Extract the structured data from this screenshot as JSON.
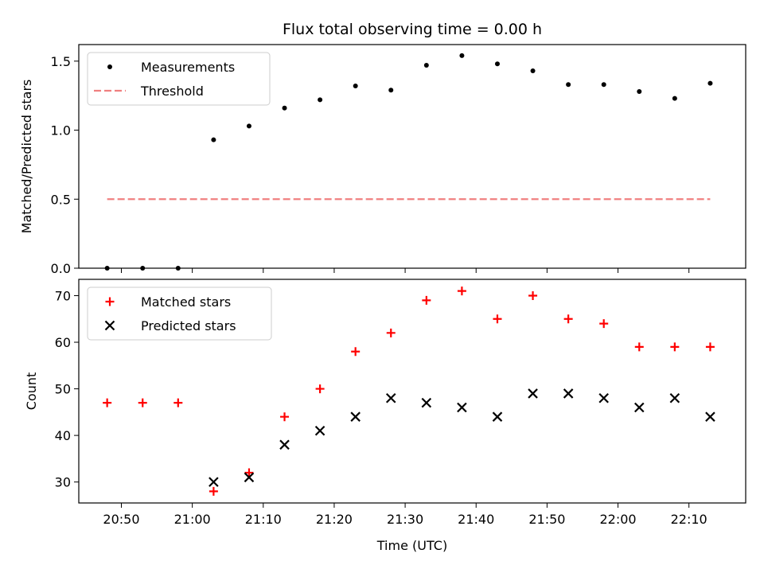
{
  "chart_data": [
    {
      "type": "scatter",
      "title": "Flux total observing time = 0.00 h",
      "xlabel": "",
      "ylabel": "Matched/Predicted stars",
      "xlim": [
        "20:44",
        "22:18"
      ],
      "ylim": [
        0,
        1.62
      ],
      "yticks": [
        "0.0",
        "0.5",
        "1.0",
        "1.5"
      ],
      "grid": false,
      "legend": "top-left",
      "series": [
        {
          "name": "Measurements",
          "marker": "dot",
          "color": "#000000",
          "x": [
            "20:48",
            "20:53",
            "20:58",
            "21:03",
            "21:08",
            "21:13",
            "21:18",
            "21:23",
            "21:28",
            "21:33",
            "21:38",
            "21:43",
            "21:48",
            "21:53",
            "21:58",
            "22:03",
            "22:08",
            "22:13"
          ],
          "y": [
            0.0,
            0.0,
            0.0,
            0.93,
            1.03,
            1.16,
            1.22,
            1.32,
            1.29,
            1.47,
            1.54,
            1.48,
            1.43,
            1.33,
            1.33,
            1.28,
            1.23,
            1.34
          ]
        },
        {
          "name": "Threshold",
          "marker": "dashed-line",
          "color": "#f08080",
          "x": [
            "20:48",
            "22:13"
          ],
          "y": [
            0.5,
            0.5
          ]
        }
      ]
    },
    {
      "type": "scatter",
      "title": "",
      "xlabel": "Time (UTC)",
      "ylabel": "Count",
      "xlim": [
        "20:44",
        "22:18"
      ],
      "ylim": [
        25.5,
        73.5
      ],
      "xticks": [
        "20:50",
        "21:00",
        "21:10",
        "21:20",
        "21:30",
        "21:40",
        "21:50",
        "22:00",
        "22:10"
      ],
      "yticks": [
        "30",
        "40",
        "50",
        "60",
        "70"
      ],
      "grid": false,
      "legend": "top-left",
      "series": [
        {
          "name": "Matched stars",
          "marker": "plus",
          "color": "#ff0000",
          "x": [
            "20:48",
            "20:53",
            "20:58",
            "21:03",
            "21:08",
            "21:13",
            "21:18",
            "21:23",
            "21:28",
            "21:33",
            "21:38",
            "21:43",
            "21:48",
            "21:53",
            "21:58",
            "22:03",
            "22:08",
            "22:13"
          ],
          "y": [
            47,
            47,
            47,
            28,
            32,
            44,
            50,
            58,
            62,
            69,
            71,
            65,
            70,
            65,
            64,
            59,
            59,
            59
          ]
        },
        {
          "name": "Predicted stars",
          "marker": "x",
          "color": "#000000",
          "x": [
            "21:03",
            "21:08",
            "21:13",
            "21:18",
            "21:23",
            "21:28",
            "21:33",
            "21:38",
            "21:43",
            "21:48",
            "21:53",
            "21:58",
            "22:03",
            "22:08",
            "22:13"
          ],
          "y": [
            30,
            31,
            38,
            41,
            44,
            48,
            47,
            46,
            44,
            49,
            49,
            48,
            46,
            48,
            44
          ]
        }
      ]
    }
  ]
}
